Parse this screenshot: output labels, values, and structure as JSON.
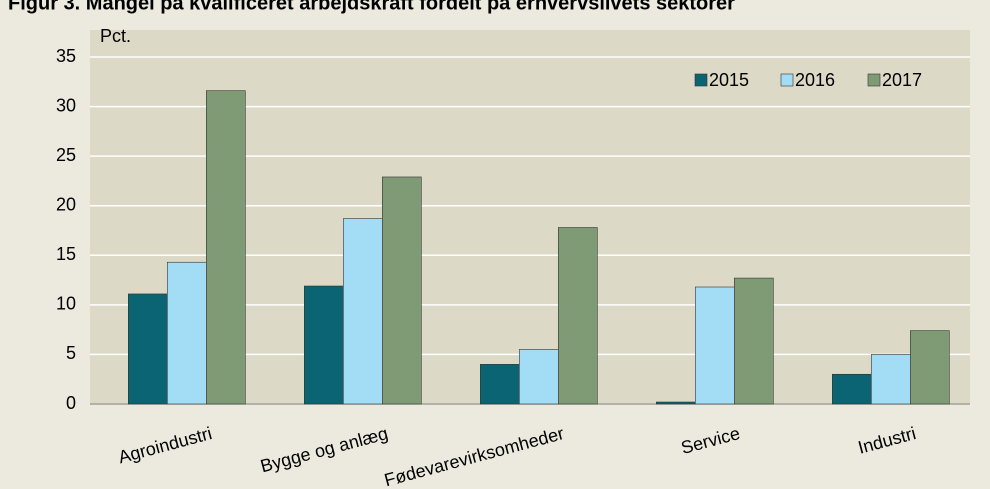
{
  "chart_data": {
    "type": "bar",
    "title": "Figur 3. Mangel på kvalificeret arbejdskraft fordelt på erhvervslivets sektorer",
    "ylabel": "Pct.",
    "categories": [
      "Agroindustri",
      "Bygge og anlæg",
      "Fødevarevirksomheder",
      "Service",
      "Industri"
    ],
    "series": [
      {
        "name": "2015",
        "color": "#0b6472",
        "values": [
          11.1,
          11.9,
          4.0,
          0.2,
          3.0
        ]
      },
      {
        "name": "2016",
        "color": "#a3dcf5",
        "values": [
          14.3,
          18.7,
          5.5,
          11.8,
          5.0
        ]
      },
      {
        "name": "2017",
        "color": "#7f9b76",
        "values": [
          31.6,
          22.9,
          17.8,
          12.7,
          7.4
        ]
      }
    ],
    "ylim": [
      0,
      35
    ],
    "yticks": [
      0,
      5,
      10,
      15,
      20,
      25,
      30,
      35
    ],
    "grid": true,
    "legend": "top-right"
  }
}
